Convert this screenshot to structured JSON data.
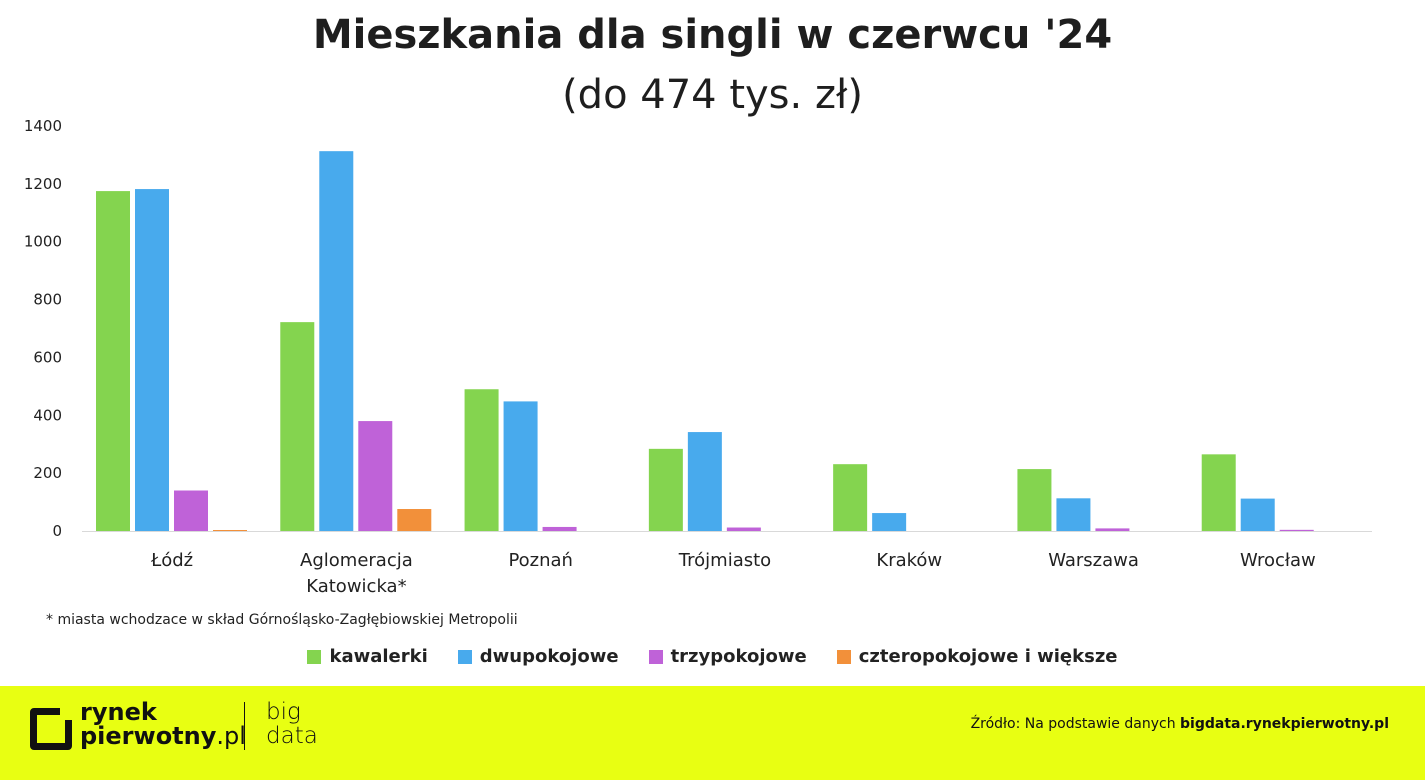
{
  "title": "Mieszkania dla singli w czerwcu '24",
  "subtitle": "(do 474 tys. zł)",
  "footnote": "* miasta wchodzace w skład Górnośląsko-Zagłębiowskiej Metropolii",
  "chart_data": {
    "type": "bar",
    "title": "Mieszkania dla singli w czerwcu '24",
    "subtitle": "(do 474 tys. zł)",
    "categories": [
      "Łódź",
      "Aglomeracja\nKatowicka*",
      "Poznań",
      "Trójmiasto",
      "Kraków",
      "Warszawa",
      "Wrocław"
    ],
    "series": [
      {
        "name": "kawalerki",
        "color": "#84d44f",
        "values": [
          1175,
          722,
          490,
          284,
          231,
          214,
          265
        ]
      },
      {
        "name": "dwupokojowe",
        "color": "#48aaed",
        "values": [
          1182,
          1313,
          448,
          342,
          62,
          113,
          112
        ]
      },
      {
        "name": "trzypokojowe",
        "color": "#bf62d8",
        "values": [
          140,
          380,
          14,
          12,
          0,
          9,
          4
        ]
      },
      {
        "name": "czteropokojowe i większe",
        "color": "#f2903a",
        "values": [
          3,
          76,
          0,
          0,
          0,
          0,
          0
        ]
      }
    ],
    "yticks": [
      0,
      200,
      400,
      600,
      800,
      1000,
      1200,
      1400
    ],
    "ylim": [
      0,
      1400
    ],
    "grid": false,
    "legend": "bottom"
  },
  "footer": {
    "logo_line1": "rynek",
    "logo_line2": "pierwotny",
    "logo_suffix": ".pl",
    "bigdata_line1": "big",
    "bigdata_line2": "data",
    "source_prefix": "Źródło: Na podstawie danych ",
    "source_bold": "bigdata.rynekpierwotny.pl"
  }
}
